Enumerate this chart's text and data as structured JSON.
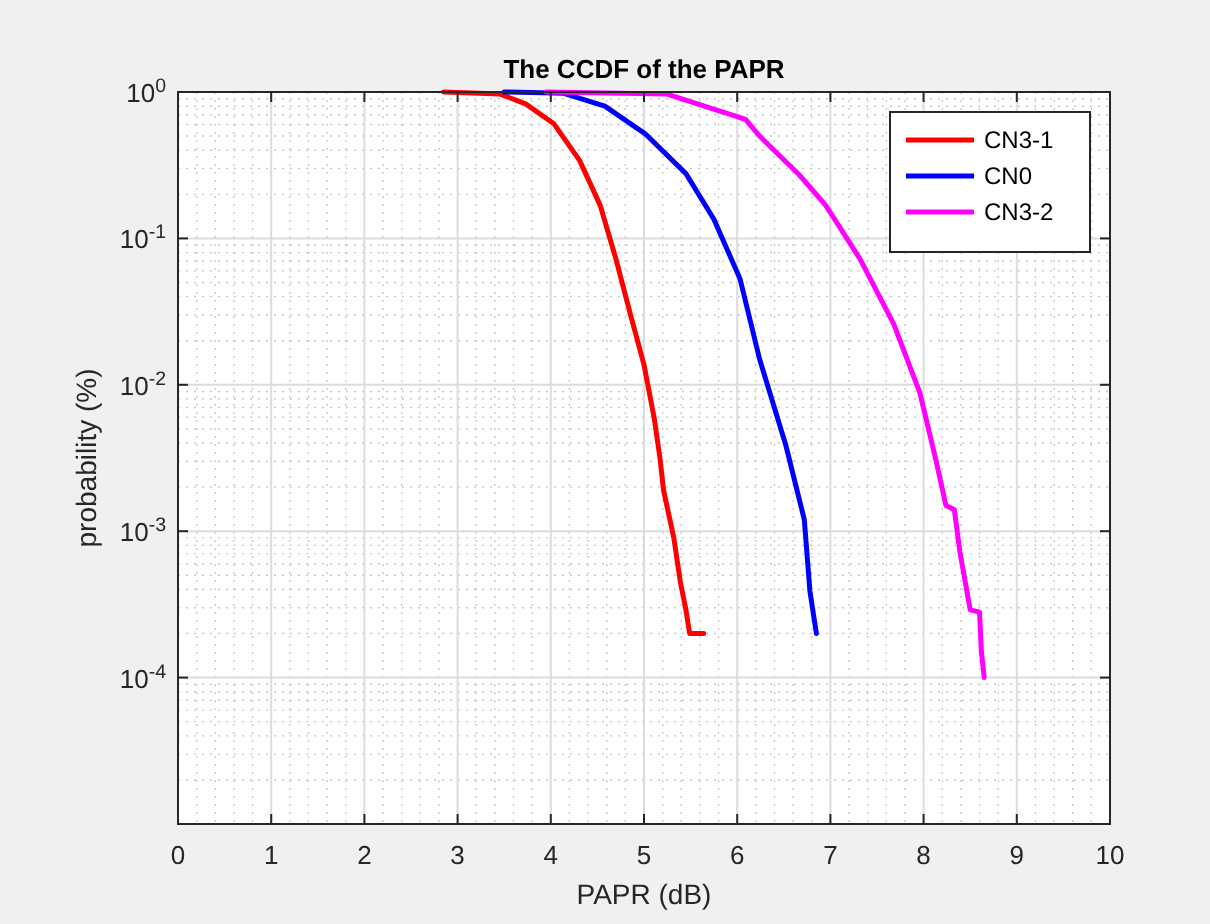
{
  "chart_data": {
    "type": "line",
    "title": "The CCDF of the PAPR",
    "xlabel": "PAPR (dB)",
    "ylabel": "probability (%)",
    "log": "y",
    "grid": true,
    "legend": "top right",
    "line_style": "solid",
    "marker": "none",
    "xlim": [
      0,
      10
    ],
    "xticks": [
      0,
      1,
      2,
      3,
      4,
      5,
      6,
      7,
      8,
      9,
      10
    ],
    "ylim": [
      1e-05,
      1
    ],
    "yticks": [
      {
        "value": 1,
        "label": "10$^{0}$"
      },
      {
        "value": 0.1,
        "label": "10$^{-1}$"
      },
      {
        "value": 0.01,
        "label": "10$^{-2}$"
      },
      {
        "value": 0.001,
        "label": "10$^{-3}$"
      },
      {
        "value": 0.0001,
        "label": "10$^{-4}$"
      }
    ],
    "series": [
      {
        "name": "CN3-1",
        "color": "#ff0000",
        "x": [
          2.85,
          3.45,
          3.73,
          4.03,
          4.31,
          4.53,
          4.7,
          4.85,
          5.0,
          5.11,
          5.17,
          5.21,
          5.32,
          5.39,
          5.45,
          5.49,
          5.64
        ],
        "values": [
          1,
          0.97,
          0.83,
          0.61,
          0.34,
          0.168,
          0.072,
          0.031,
          0.0137,
          0.0059,
          0.0032,
          0.0019,
          0.0009,
          0.00045,
          0.00029,
          0.0002,
          0.0002
        ]
      },
      {
        "name": "CN0",
        "color": "#0000ff",
        "x": [
          3.5,
          4.14,
          4.58,
          5.01,
          5.45,
          5.75,
          6.03,
          6.24,
          6.52,
          6.72,
          6.78,
          6.85
        ],
        "values": [
          1,
          0.98,
          0.8,
          0.52,
          0.277,
          0.135,
          0.053,
          0.015,
          0.0039,
          0.0012,
          0.00039,
          0.0002
        ]
      },
      {
        "name": "CN3-2",
        "color": "#ff00ff",
        "x": [
          3.95,
          5.24,
          6.09,
          6.24,
          6.67,
          6.95,
          7.32,
          7.68,
          7.96,
          8.13,
          8.24,
          8.33,
          8.39,
          8.5,
          8.6,
          8.62,
          8.65
        ],
        "values": [
          1,
          0.97,
          0.65,
          0.5,
          0.27,
          0.168,
          0.072,
          0.026,
          0.0088,
          0.0031,
          0.0015,
          0.0014,
          0.00072,
          0.00029,
          0.00028,
          0.00015,
          0.0001
        ]
      }
    ]
  }
}
